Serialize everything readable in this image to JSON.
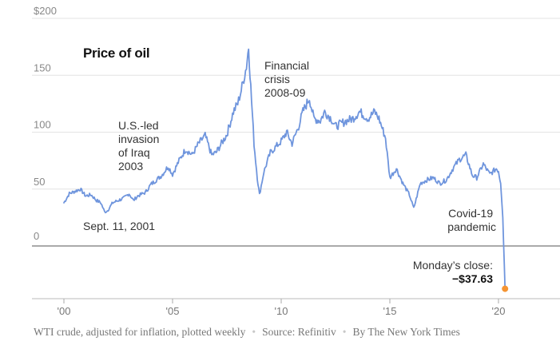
{
  "chart_data": {
    "type": "line",
    "title": "Price of oil",
    "y_unit": "$",
    "ylim": [
      -50,
      200
    ],
    "y_ticks": [
      {
        "value": 200,
        "label": "$200"
      },
      {
        "value": 150,
        "label": "150"
      },
      {
        "value": 100,
        "label": "100"
      },
      {
        "value": 50,
        "label": "50"
      },
      {
        "value": 0,
        "label": "0"
      }
    ],
    "xlim": [
      2000,
      2020.6
    ],
    "x_ticks": [
      {
        "value": 2000,
        "label": "'00"
      },
      {
        "value": 2005,
        "label": "'05"
      },
      {
        "value": 2010,
        "label": "'10"
      },
      {
        "value": 2015,
        "label": "'15"
      },
      {
        "value": 2020,
        "label": "'20"
      }
    ],
    "series": [
      {
        "color": "#6f95dd",
        "x": [
          2000.0,
          2000.25,
          2000.5,
          2000.75,
          2001.0,
          2001.25,
          2001.5,
          2001.7,
          2001.87,
          2002.0,
          2002.25,
          2002.5,
          2002.75,
          2003.0,
          2003.2,
          2003.4,
          2003.75,
          2004.0,
          2004.25,
          2004.5,
          2004.8,
          2005.0,
          2005.3,
          2005.6,
          2005.9,
          2006.2,
          2006.5,
          2006.8,
          2007.0,
          2007.25,
          2007.5,
          2007.8,
          2008.0,
          2008.2,
          2008.4,
          2008.5,
          2008.6,
          2008.75,
          2008.9,
          2009.0,
          2009.2,
          2009.5,
          2009.8,
          2010.0,
          2010.25,
          2010.5,
          2010.8,
          2011.0,
          2011.3,
          2011.5,
          2011.8,
          2012.0,
          2012.3,
          2012.5,
          2012.8,
          2013.0,
          2013.3,
          2013.6,
          2013.8,
          2014.0,
          2014.3,
          2014.5,
          2014.8,
          2015.0,
          2015.3,
          2015.6,
          2015.9,
          2016.1,
          2016.4,
          2016.7,
          2017.0,
          2017.3,
          2017.6,
          2017.9,
          2018.2,
          2018.5,
          2018.8,
          2019.0,
          2019.3,
          2019.6,
          2019.9,
          2020.0,
          2020.1,
          2020.2,
          2020.3
        ],
        "y": [
          38,
          46,
          48,
          50,
          44,
          45,
          40,
          38,
          30,
          31,
          38,
          40,
          42,
          46,
          40,
          44,
          47,
          54,
          58,
          62,
          70,
          63,
          75,
          85,
          80,
          90,
          97,
          80,
          82,
          90,
          98,
          118,
          125,
          140,
          158,
          175,
          140,
          90,
          60,
          45,
          65,
          82,
          88,
          92,
          100,
          90,
          105,
          118,
          130,
          112,
          110,
          118,
          112,
          105,
          108,
          110,
          112,
          118,
          115,
          112,
          118,
          112,
          95,
          60,
          68,
          55,
          45,
          33,
          55,
          58,
          60,
          55,
          58,
          68,
          76,
          80,
          62,
          60,
          72,
          63,
          68,
          66,
          55,
          25,
          -37.63
        ]
      }
    ],
    "annotations": [
      {
        "lines": [
          "Financial",
          "crisis",
          "2008-09"
        ]
      },
      {
        "lines": [
          "U.S.-led",
          "invasion",
          "of Iraq",
          "2003"
        ]
      },
      {
        "lines": [
          "Sept. 11, 2001"
        ]
      },
      {
        "lines": [
          "Covid-19",
          "pandemic"
        ]
      }
    ],
    "highlight": {
      "label": "Monday’s close:",
      "value_label": "−$37.63",
      "value": -37.63,
      "color": "#f59432"
    }
  },
  "footer": {
    "note": "WTI crude, adjusted for inflation, plotted weekly",
    "sep": "•",
    "source": "Source:  Refinitiv",
    "byline": "By The New York Times"
  }
}
